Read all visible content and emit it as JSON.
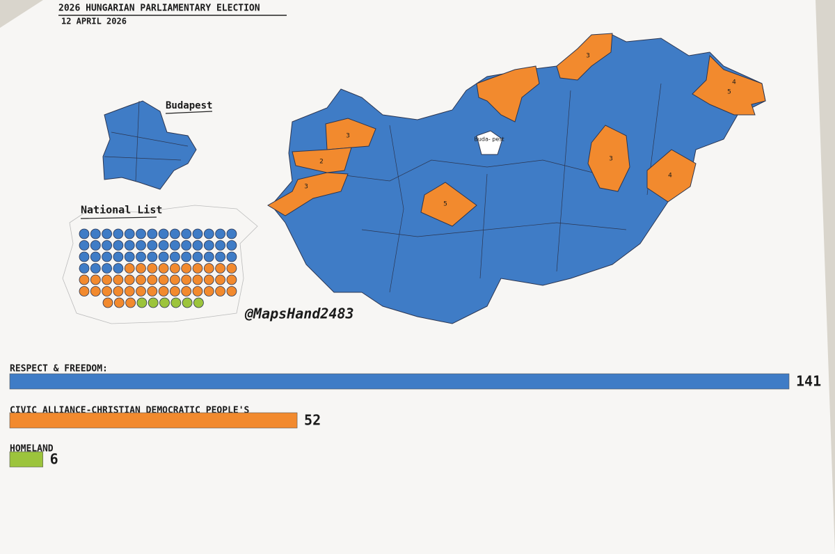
{
  "header": {
    "title": "2026 HUNGARIAN PARLIAMENTARY ELECTION",
    "date": "12 APRIL 2026"
  },
  "budapest": {
    "label": "Budapest"
  },
  "map": {
    "budapest_label": "Buda- pest",
    "credit": "@MapsHand2483",
    "district_labels": [
      "3",
      "3",
      "2",
      "3",
      "5",
      "3",
      "4",
      "4",
      "5"
    ]
  },
  "national_list": {
    "title": "National List",
    "seats": [
      46,
      41,
      6
    ]
  },
  "results": {
    "parties": [
      {
        "name": "RESPECT & FREEDOM:",
        "color": "#3f7cc6",
        "seats": 141
      },
      {
        "name": "CIVIC ALLIANCE-CHRISTIAN DEMOCRATIC PEOPLE'S",
        "color": "#f28a2e",
        "seats": 52
      },
      {
        "name": "HOMELAND",
        "color": "#9cc43c",
        "seats": 6
      }
    ]
  }
}
